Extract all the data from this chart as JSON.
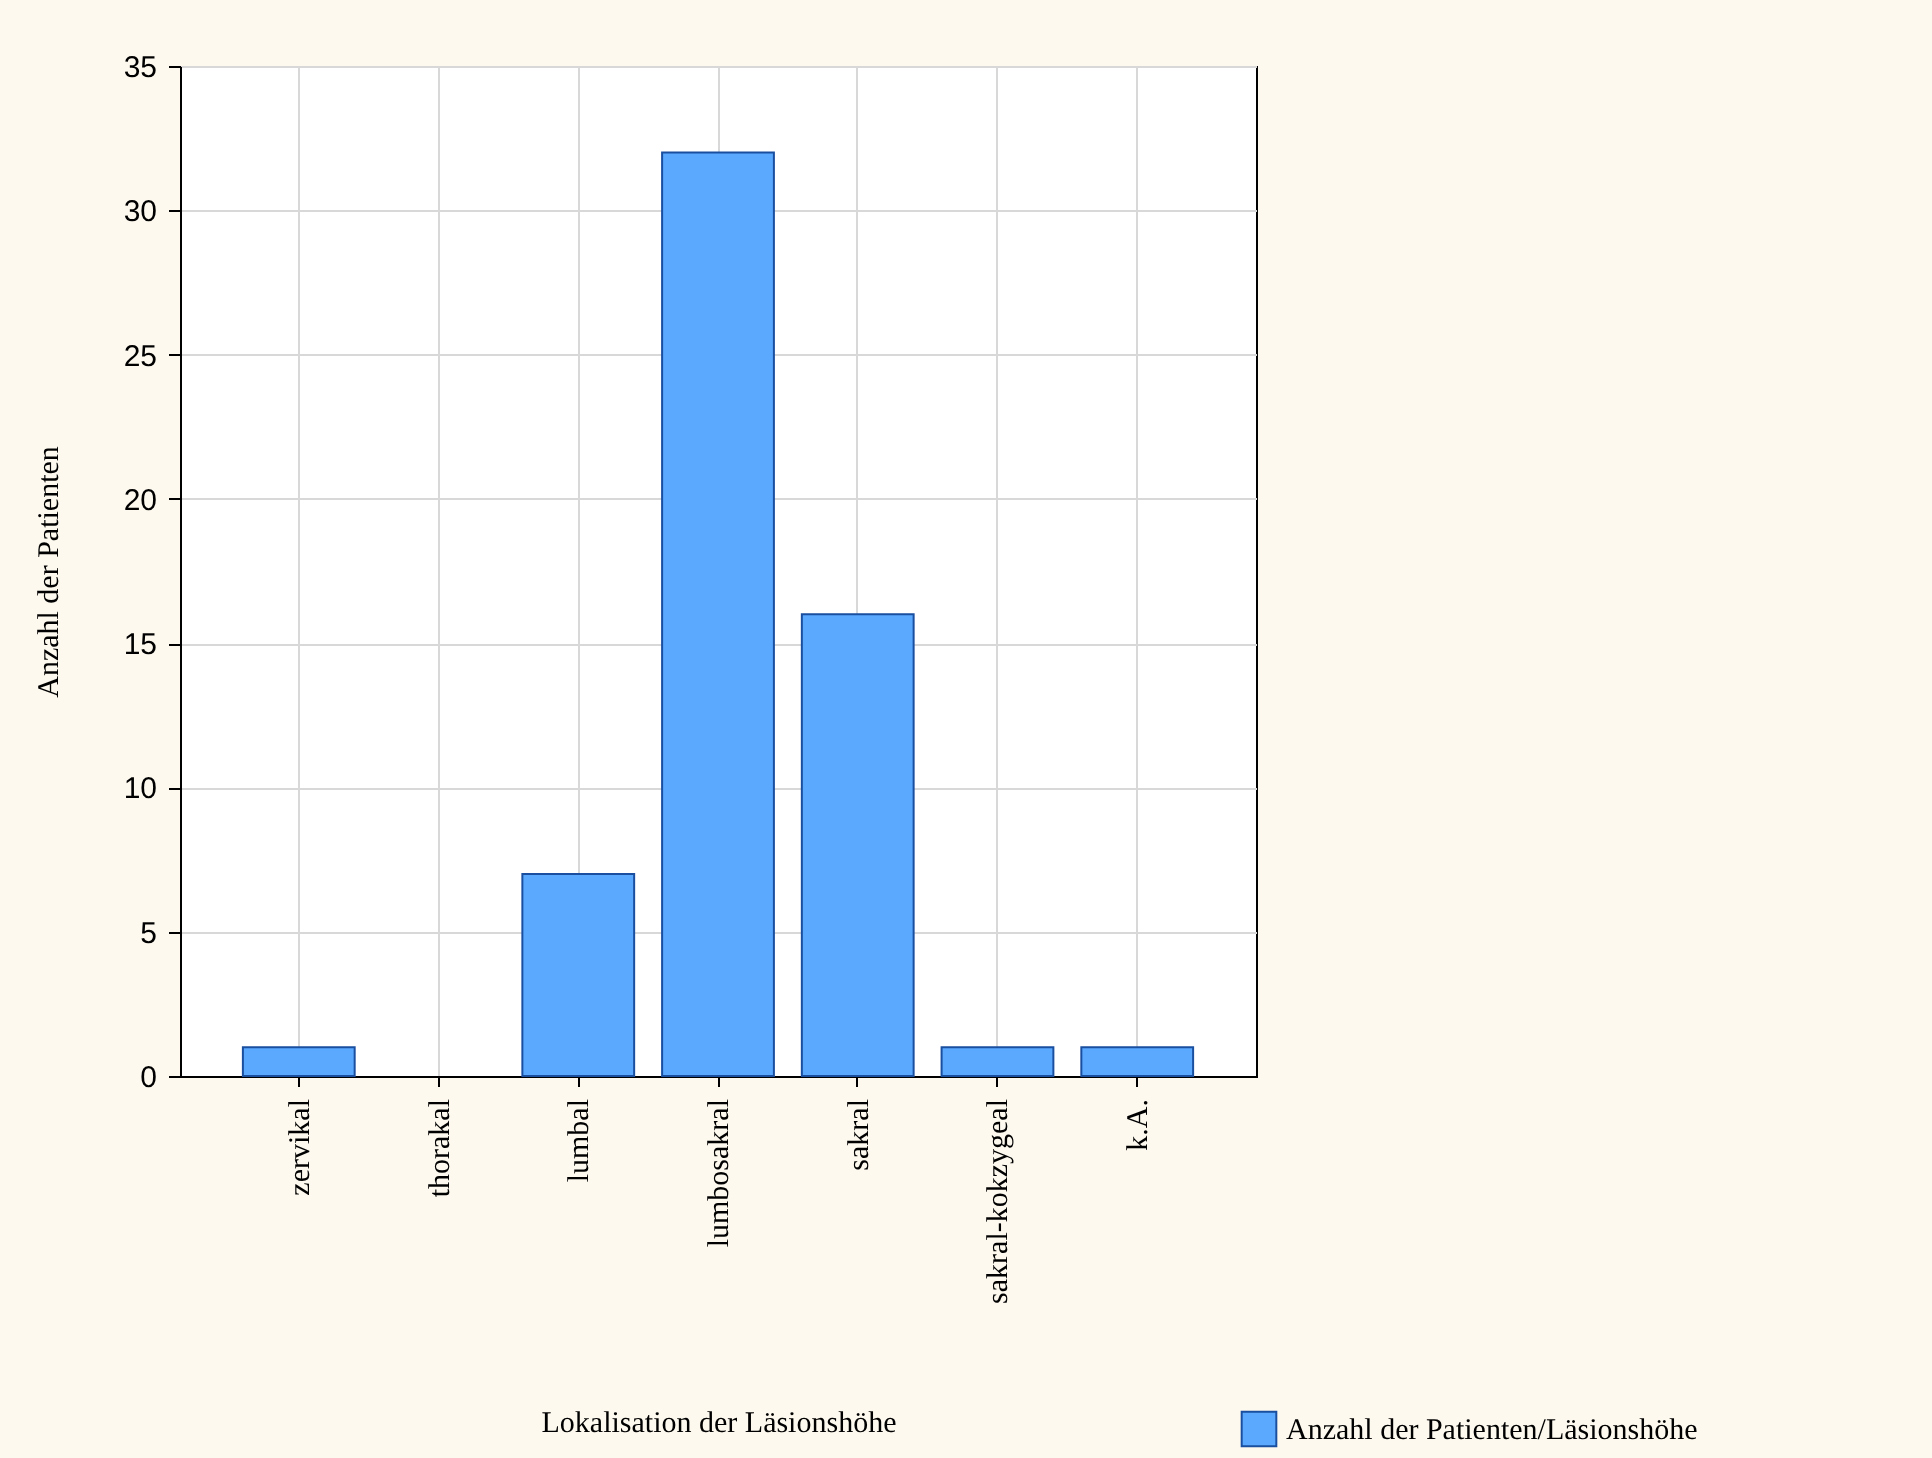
{
  "chart_data": {
    "type": "bar",
    "xlabel": "Lokalisation der Läsionshöhe",
    "ylabel": "Anzahl der Patienten",
    "categories": [
      "zervikal",
      "thorakal",
      "lumbal",
      "lumbosakral",
      "sakral",
      "sakral-kokzygeal",
      "k.A."
    ],
    "series": [
      {
        "name": "Anzahl der Patienten/Läsionshöhe",
        "color": "#5aa9ff",
        "values": [
          1,
          0,
          7,
          32,
          16,
          1,
          1
        ]
      }
    ],
    "ylim": [
      0,
      35
    ],
    "yticks": [
      0,
      5,
      10,
      15,
      20,
      25,
      30,
      35
    ],
    "grid": true,
    "legend": "bottom right"
  }
}
